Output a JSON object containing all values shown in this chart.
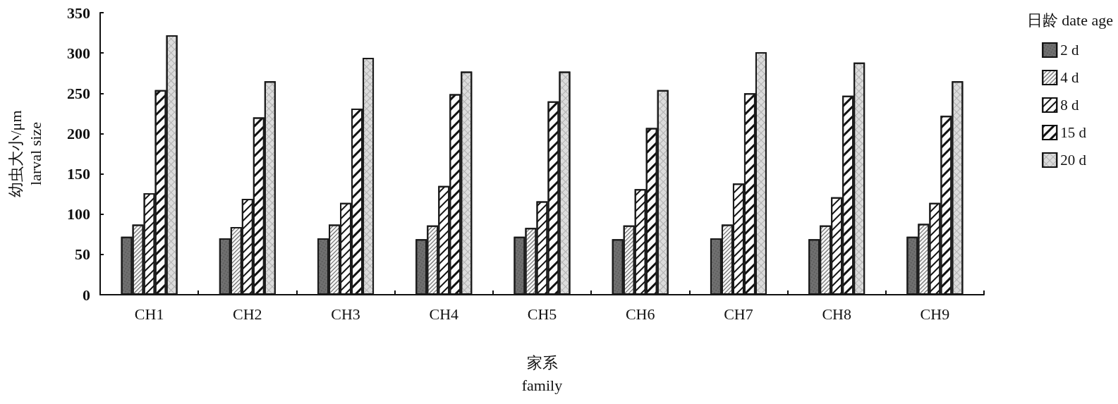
{
  "chart_data": {
    "type": "bar",
    "xlabel": "家系\nfamily",
    "ylabel": "幼虫大小/μm\nlarval size",
    "legend_title": "日龄 date age",
    "categories": [
      "CH1",
      "CH2",
      "CH3",
      "CH4",
      "CH5",
      "CH6",
      "CH7",
      "CH8",
      "CH9"
    ],
    "series": [
      {
        "name": "2 d",
        "color": "#707070",
        "values": [
          72,
          70,
          70,
          69,
          72,
          69,
          70,
          69,
          72
        ]
      },
      {
        "name": "4 d",
        "color": "#f4f4f4",
        "values": [
          87,
          84,
          87,
          86,
          83,
          86,
          87,
          86,
          88
        ]
      },
      {
        "name": "8 d",
        "color": "#ffffff",
        "values": [
          126,
          119,
          114,
          135,
          116,
          131,
          138,
          121,
          114
        ]
      },
      {
        "name": "15 d",
        "color": "#fafafa",
        "values": [
          254,
          220,
          231,
          249,
          240,
          207,
          250,
          247,
          222
        ]
      },
      {
        "name": "20 d",
        "color": "#dcdcdc",
        "values": [
          322,
          265,
          294,
          277,
          277,
          254,
          301,
          288,
          265
        ]
      }
    ],
    "ylim": [
      0,
      350
    ],
    "yticks": [
      0,
      50,
      100,
      150,
      200,
      250,
      300,
      350
    ],
    "grid": false,
    "legend": "right"
  }
}
